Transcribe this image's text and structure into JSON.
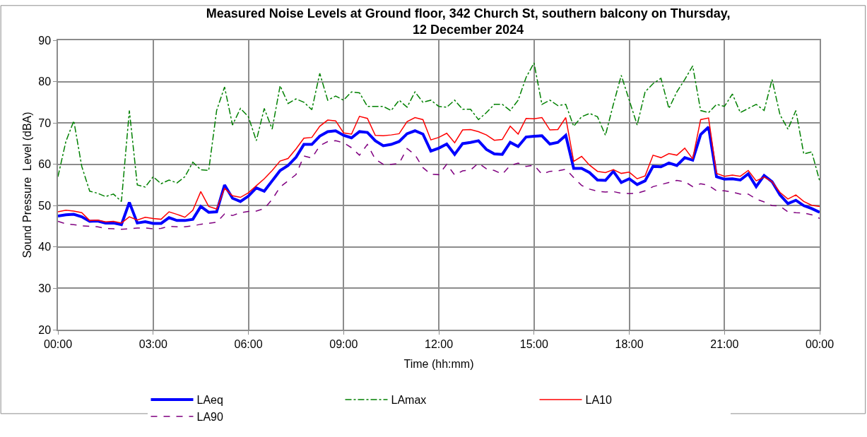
{
  "chart_data": {
    "type": "line",
    "title": "Measured Noise Levels at Ground floor, 342 Church St, southern balcony on Thursday,\n12 December 2024",
    "xlabel": "Time (hh:mm)",
    "ylabel": "Sound Pressure  Level (dBA)",
    "x": [
      0,
      0.25,
      0.5,
      0.75,
      1,
      1.25,
      1.5,
      1.75,
      2,
      2.25,
      2.5,
      2.75,
      3,
      3.25,
      3.5,
      3.75,
      4,
      4.25,
      4.5,
      4.75,
      5,
      5.25,
      5.5,
      5.75,
      6,
      6.25,
      6.5,
      6.75,
      7,
      7.25,
      7.5,
      7.75,
      8,
      8.25,
      8.5,
      8.75,
      9,
      9.25,
      9.5,
      9.75,
      10,
      10.25,
      10.5,
      10.75,
      11,
      11.25,
      11.5,
      11.75,
      12,
      12.25,
      12.5,
      12.75,
      13,
      13.25,
      13.5,
      13.75,
      14,
      14.25,
      14.5,
      14.75,
      15,
      15.25,
      15.5,
      15.75,
      16,
      16.25,
      16.5,
      16.75,
      17,
      17.25,
      17.5,
      17.75,
      18,
      18.25,
      18.5,
      18.75,
      19,
      19.25,
      19.5,
      19.75,
      20,
      20.25,
      20.5,
      20.75,
      21,
      21.25,
      21.5,
      21.75,
      22,
      22.25,
      22.5,
      22.75,
      23,
      23.25,
      23.5,
      23.75,
      24
    ],
    "series": [
      {
        "name": "LAeq",
        "color": "#0000ff",
        "line_style": "solid",
        "values": [
          47.5,
          47.8,
          47.9,
          47.3,
          46.2,
          46.3,
          45.8,
          45.8,
          45.4,
          50.8,
          45.8,
          46.1,
          45.7,
          45.7,
          47.1,
          46.4,
          46.4,
          46.7,
          49.8,
          48.4,
          48.5,
          55.0,
          51.8,
          51.0,
          52.3,
          54.3,
          53.5,
          56.0,
          58.5,
          59.7,
          61.7,
          64.8,
          64.8,
          66.8,
          67.9,
          68.1,
          67.0,
          66.4,
          67.9,
          67.7,
          65.7,
          64.5,
          64.8,
          65.5,
          67.4,
          68.1,
          67.3,
          63.2,
          63.9,
          64.9,
          62.4,
          65.0,
          65.3,
          65.7,
          63.6,
          62.5,
          62.4,
          65.3,
          64.3,
          66.6,
          66.8,
          66.9,
          64.9,
          65.3,
          67.0,
          59.0,
          59.0,
          58.0,
          56.2,
          56.1,
          58.3,
          55.6,
          56.5,
          55.1,
          56.0,
          59.5,
          59.4,
          60.3,
          59.7,
          61.6,
          61.0,
          67.2,
          69.0,
          57.0,
          56.4,
          56.5,
          56.2,
          57.7,
          54.6,
          57.3,
          55.8,
          52.6,
          50.5,
          51.3,
          50.0,
          49.3,
          48.4
        ]
      },
      {
        "name": "LAmax",
        "color": "#008000",
        "line_style": "dashdot",
        "values": [
          57.0,
          65.5,
          70.5,
          59.5,
          53.5,
          53.0,
          52.2,
          52.8,
          51.0,
          73.0,
          55.0,
          54.5,
          57.0,
          55.3,
          56.2,
          55.5,
          57.0,
          60.5,
          58.7,
          58.5,
          73.0,
          78.7,
          69.5,
          73.5,
          71.5,
          65.7,
          73.5,
          68.5,
          79.0,
          74.7,
          75.8,
          75.0,
          73.2,
          82.0,
          75.5,
          76.5,
          75.5,
          77.5,
          77.3,
          74.0,
          74.0,
          74.0,
          73.0,
          75.5,
          73.8,
          77.5,
          75.0,
          75.5,
          74.0,
          73.8,
          75.5,
          73.3,
          73.3,
          70.8,
          72.5,
          74.5,
          74.5,
          73.0,
          75.5,
          81.0,
          84.5,
          74.5,
          75.5,
          74.2,
          74.5,
          69.2,
          71.5,
          72.3,
          71.5,
          67.0,
          74.5,
          81.5,
          75.5,
          69.5,
          77.5,
          79.5,
          80.8,
          73.5,
          77.5,
          80.5,
          83.8,
          73.0,
          72.5,
          74.5,
          74.0,
          77.0,
          72.5,
          73.5,
          74.5,
          73.0,
          80.5,
          72.0,
          68.5,
          73.0,
          62.5,
          63.0,
          56.0
        ]
      },
      {
        "name": "LA10",
        "color": "#ff0000",
        "line_style": "solid",
        "values": [
          48.5,
          48.9,
          48.7,
          48.3,
          46.4,
          46.5,
          46.1,
          46.2,
          45.8,
          47.3,
          46.5,
          47.2,
          46.9,
          46.7,
          48.5,
          47.9,
          47.2,
          48.9,
          53.4,
          49.8,
          49.2,
          54.2,
          52.4,
          52.0,
          53.1,
          54.8,
          56.5,
          58.5,
          60.8,
          61.4,
          63.7,
          66.3,
          66.5,
          69.2,
          70.7,
          70.5,
          67.6,
          67.3,
          71.6,
          71.1,
          67.0,
          66.9,
          67.1,
          67.4,
          70.3,
          71.3,
          70.8,
          65.9,
          66.5,
          67.5,
          65.2,
          68.3,
          68.4,
          67.9,
          67.1,
          65.8,
          66.0,
          69.2,
          67.3,
          71.1,
          71.0,
          71.3,
          68.3,
          68.4,
          71.3,
          60.7,
          61.9,
          59.8,
          58.3,
          58.0,
          58.7,
          57.8,
          58.1,
          56.5,
          57.2,
          62.2,
          61.6,
          62.6,
          62.2,
          63.9,
          61.3,
          70.8,
          71.2,
          57.8,
          57.1,
          57.4,
          57.1,
          58.5,
          56.0,
          56.9,
          55.8,
          53.2,
          51.6,
          52.6,
          51.0,
          50.1,
          49.8
        ]
      },
      {
        "name": "LA90",
        "color": "#800080",
        "line_style": "dashed",
        "values": [
          46.2,
          45.6,
          45.4,
          45.1,
          45.0,
          44.9,
          44.5,
          44.4,
          44.3,
          44.4,
          44.6,
          44.6,
          44.4,
          44.5,
          45.0,
          44.9,
          44.9,
          45.1,
          45.5,
          45.7,
          46.0,
          48.0,
          47.6,
          48.3,
          48.6,
          48.7,
          49.3,
          51.5,
          54.5,
          56.0,
          57.5,
          62.0,
          61.5,
          64.5,
          65.5,
          65.7,
          65.2,
          64.0,
          62.2,
          64.8,
          61.2,
          60.0,
          60.0,
          60.2,
          63.8,
          62.3,
          59.2,
          57.6,
          57.5,
          60.0,
          57.4,
          58.4,
          58.6,
          60.3,
          58.9,
          58.5,
          57.6,
          59.7,
          60.3,
          59.5,
          59.8,
          57.6,
          58.3,
          58.4,
          58.8,
          56.8,
          54.9,
          54.0,
          53.5,
          53.3,
          53.4,
          53.0,
          52.9,
          53.0,
          53.6,
          54.6,
          55.1,
          55.6,
          56.1,
          55.8,
          54.6,
          55.3,
          54.9,
          53.6,
          53.6,
          53.3,
          52.8,
          52.8,
          51.6,
          50.9,
          50.0,
          49.9,
          48.5,
          48.3,
          48.2,
          47.8,
          46.9
        ]
      }
    ],
    "xlim": [
      0,
      24
    ],
    "xticks": [
      {
        "value": 0,
        "label": "00:00"
      },
      {
        "value": 3,
        "label": "03:00"
      },
      {
        "value": 6,
        "label": "06:00"
      },
      {
        "value": 9,
        "label": "09:00"
      },
      {
        "value": 12,
        "label": "12:00"
      },
      {
        "value": 15,
        "label": "15:00"
      },
      {
        "value": 18,
        "label": "18:00"
      },
      {
        "value": 21,
        "label": "21:00"
      },
      {
        "value": 24,
        "label": "00:00"
      }
    ],
    "ylim": [
      20,
      90
    ],
    "yticks": [
      20,
      30,
      40,
      50,
      60,
      70,
      80,
      90
    ],
    "grid": true,
    "legend": "bottom",
    "marker": "none"
  }
}
